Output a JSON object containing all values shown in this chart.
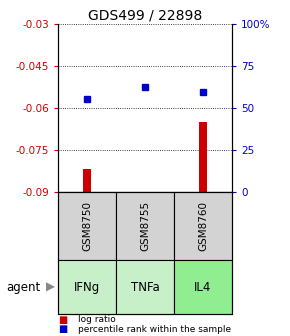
{
  "title": "GDS499 / 22898",
  "samples": [
    "GSM8750",
    "GSM8755",
    "GSM8760"
  ],
  "agents": [
    "IFNg",
    "TNFa",
    "IL4"
  ],
  "log_ratios": [
    -0.082,
    -0.091,
    -0.065
  ],
  "percentile_ranks": [
    55,
    62,
    59
  ],
  "ylim_left": [
    -0.09,
    -0.03
  ],
  "ylim_right": [
    0,
    100
  ],
  "yticks_left": [
    -0.09,
    -0.075,
    -0.06,
    -0.045,
    -0.03
  ],
  "ytick_labels_left": [
    "-0.09",
    "-0.075",
    "-0.06",
    "-0.045",
    "-0.03"
  ],
  "yticks_right": [
    0,
    25,
    50,
    75,
    100
  ],
  "ytick_labels_right": [
    "0",
    "25",
    "50",
    "75",
    "100%"
  ],
  "bar_color": "#cc0000",
  "dot_color": "#0000cc",
  "agent_bg_colors": [
    "#c8f0c8",
    "#c8f0c8",
    "#90ee90"
  ],
  "sample_box_color": "#d3d3d3",
  "legend_log_ratio": "log ratio",
  "legend_percentile": "percentile rank within the sample",
  "agent_label": "agent",
  "left_tick_color": "#cc0000",
  "right_tick_color": "#0000cc",
  "title_fontsize": 10,
  "tick_fontsize": 7.5,
  "bar_width": 0.15,
  "agent_label_fontsize": 8.5
}
